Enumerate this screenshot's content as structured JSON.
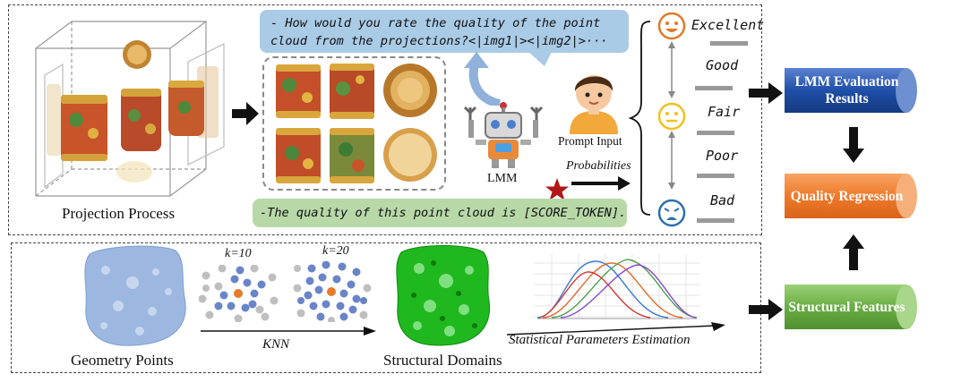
{
  "top_panel": {
    "projection_label": "Projection Process",
    "question_text": "- How would you rate the quality of the point cloud from the projections?<|img1|><|img2|>···",
    "answer_text": "-The quality of this point cloud is [SCORE_TOKEN].",
    "prompt_label": "Prompt Input",
    "lmm_label": "LMM",
    "probabilities_label": "Probabilities"
  },
  "ratings": [
    "Excellent",
    "Good",
    "Fair",
    "Poor",
    "Bad"
  ],
  "bottom_panel": {
    "geometry_label": "Geometry Points",
    "knn_label": "KNN",
    "k10_label": "k=10",
    "k20_label": "k=20",
    "domains_label": "Structural Domains",
    "stats_label": "Statistical Parameters Estimation"
  },
  "outputs": {
    "lmm_results": "LMM Evaluation Results",
    "quality_regression": "Quality Regression",
    "structural_features": "Structural Features"
  },
  "colors": {
    "blue_block": "#1f4fa8",
    "orange_block": "#ef7a2a",
    "green_block": "#6aae45",
    "question_bubble": "#a9cbe6",
    "answer_bubble": "#b8d8a8",
    "star": "#b01818"
  }
}
